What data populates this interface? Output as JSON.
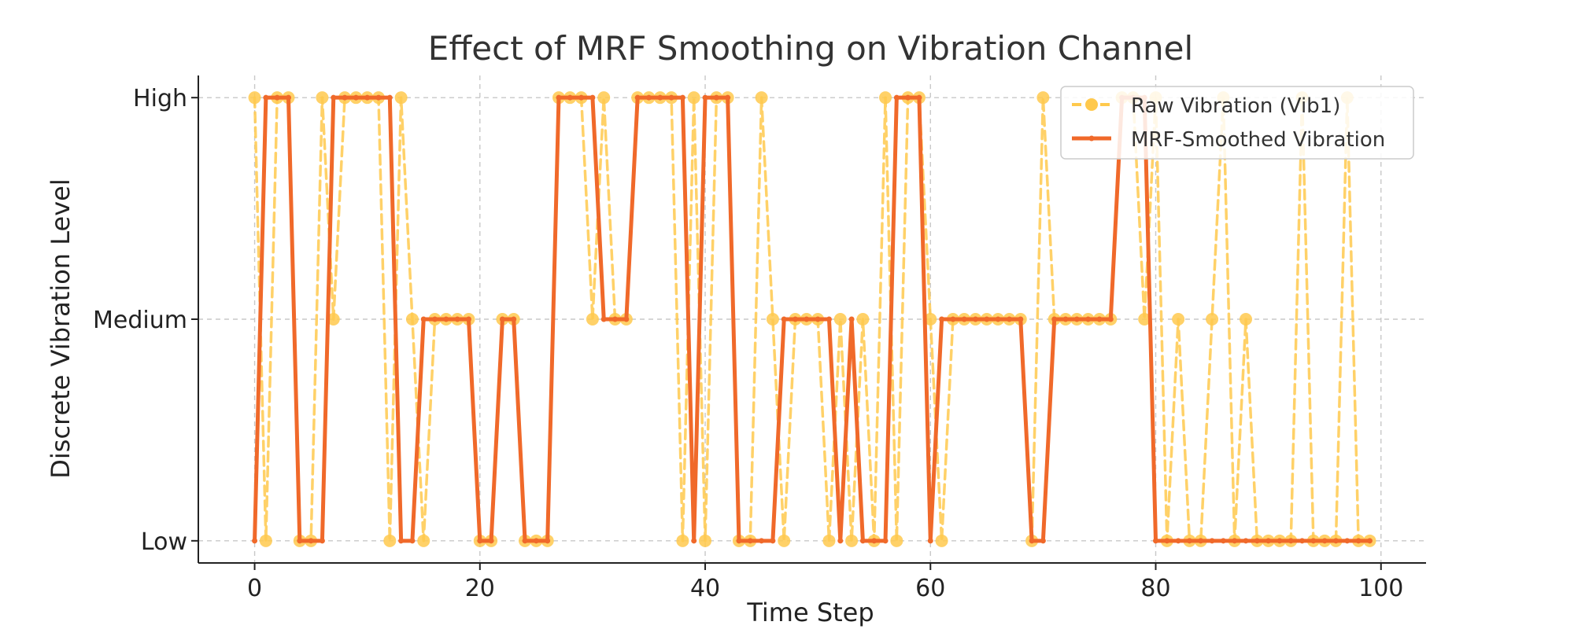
{
  "chart_data": {
    "type": "line",
    "title": "Effect of MRF Smoothing on Vibration Channel",
    "xlabel": "Time Step",
    "ylabel": "Discrete Vibration Level",
    "xlim": [
      -5,
      104
    ],
    "ylim": [
      -0.1,
      2.1
    ],
    "x_ticks": [
      0,
      20,
      40,
      60,
      80,
      100
    ],
    "x_tick_labels": [
      "0",
      "20",
      "40",
      "60",
      "80",
      "100"
    ],
    "y_ticks": [
      0,
      1,
      2
    ],
    "y_tick_labels": [
      "Low",
      "Medium",
      "High"
    ],
    "grid": true,
    "legend_position": "top-right",
    "x": [
      0,
      1,
      2,
      3,
      4,
      5,
      6,
      7,
      8,
      9,
      10,
      11,
      12,
      13,
      14,
      15,
      16,
      17,
      18,
      19,
      20,
      21,
      22,
      23,
      24,
      25,
      26,
      27,
      28,
      29,
      30,
      31,
      32,
      33,
      34,
      35,
      36,
      37,
      38,
      39,
      40,
      41,
      42,
      43,
      44,
      45,
      46,
      47,
      48,
      49,
      50,
      51,
      52,
      53,
      54,
      55,
      56,
      57,
      58,
      59,
      60,
      61,
      62,
      63,
      64,
      65,
      66,
      67,
      68,
      69,
      70,
      71,
      72,
      73,
      74,
      75,
      76,
      77,
      78,
      79,
      80,
      81,
      82,
      83,
      84,
      85,
      86,
      87,
      88,
      89,
      90,
      91,
      92,
      93,
      94,
      95,
      96,
      97,
      98,
      99
    ],
    "series": [
      {
        "name": "Raw Vibration (Vib1)",
        "color": "#ffc94d",
        "style": "dashed",
        "marker": "circle",
        "values": [
          2,
          0,
          2,
          2,
          0,
          0,
          2,
          1,
          2,
          2,
          2,
          2,
          0,
          2,
          1,
          0,
          1,
          1,
          1,
          1,
          0,
          0,
          1,
          1,
          0,
          0,
          0,
          2,
          2,
          2,
          1,
          2,
          1,
          1,
          2,
          2,
          2,
          2,
          0,
          2,
          0,
          2,
          2,
          0,
          0,
          2,
          1,
          0,
          1,
          1,
          1,
          0,
          1,
          0,
          1,
          0,
          2,
          0,
          2,
          2,
          1,
          0,
          1,
          1,
          1,
          1,
          1,
          1,
          1,
          0,
          2,
          1,
          1,
          1,
          1,
          1,
          1,
          2,
          2,
          1,
          2,
          0,
          1,
          0,
          0,
          1,
          2,
          0,
          1,
          0,
          0,
          0,
          0,
          2,
          0,
          0,
          0,
          2,
          0,
          0
        ]
      },
      {
        "name": "MRF-Smoothed Vibration",
        "color": "#f0692a",
        "style": "solid",
        "marker": "dot",
        "values": [
          0,
          2,
          2,
          2,
          0,
          0,
          0,
          2,
          2,
          2,
          2,
          2,
          2,
          0,
          0,
          1,
          1,
          1,
          1,
          1,
          0,
          0,
          1,
          1,
          0,
          0,
          0,
          2,
          2,
          2,
          2,
          1,
          1,
          1,
          2,
          2,
          2,
          2,
          2,
          0,
          2,
          2,
          2,
          0,
          0,
          0,
          0,
          1,
          1,
          1,
          1,
          1,
          0,
          1,
          0,
          0,
          0,
          2,
          2,
          2,
          0,
          1,
          1,
          1,
          1,
          1,
          1,
          1,
          1,
          0,
          0,
          1,
          1,
          1,
          1,
          1,
          1,
          2,
          2,
          2,
          0,
          0,
          0,
          0,
          0,
          0,
          0,
          0,
          0,
          0,
          0,
          0,
          0,
          0,
          0,
          0,
          0,
          0,
          0,
          0
        ]
      }
    ]
  }
}
